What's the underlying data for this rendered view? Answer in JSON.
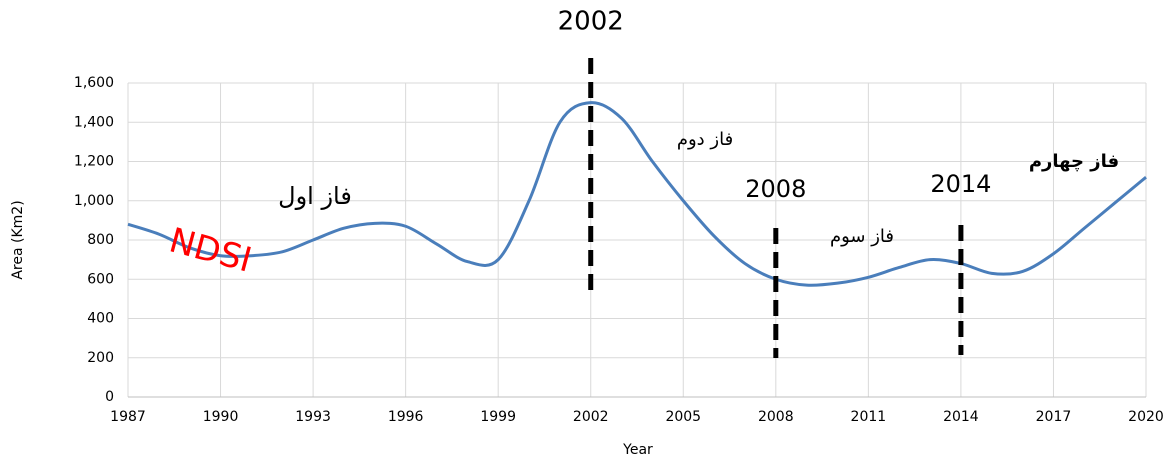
{
  "chart_data": {
    "type": "line",
    "x_label": "Year",
    "y_label": "Area (Km2)",
    "x": [
      1987,
      1988,
      1989,
      1990,
      1991,
      1992,
      1993,
      1994,
      1995,
      1996,
      1997,
      1998,
      1999,
      2000,
      2001,
      2002,
      2003,
      2004,
      2005,
      2006,
      2007,
      2008,
      2009,
      2010,
      2011,
      2012,
      2013,
      2014,
      2015,
      2016,
      2017,
      2018,
      2019,
      2020
    ],
    "series": [
      {
        "color": "#4a7ebb",
        "values": [
          880,
          830,
          760,
          720,
          720,
          740,
          800,
          860,
          885,
          870,
          780,
          690,
          700,
          1000,
          1400,
          1500,
          1420,
          1200,
          1000,
          820,
          680,
          600,
          570,
          580,
          610,
          660,
          700,
          680,
          630,
          640,
          730,
          860,
          990,
          1120
        ]
      }
    ],
    "xlim": [
      1987,
      2020
    ],
    "xticks": [
      1987,
      1990,
      1993,
      1996,
      1999,
      2002,
      2005,
      2008,
      2011,
      2014,
      2017,
      2020
    ],
    "ylim": [
      0,
      1600
    ],
    "yticks": [
      0,
      200,
      400,
      600,
      800,
      {
        "value": 1000,
        "label": "1,000"
      },
      {
        "value": 1200,
        "label": "1,200"
      },
      {
        "value": 1400,
        "label": "1,400"
      },
      {
        "value": 1600,
        "label": "1,600"
      }
    ],
    "grid": true,
    "vlines": [
      2002,
      2008,
      2014
    ],
    "annotations": [
      "NDSI",
      "فاز اول",
      "فاز دوم",
      "فاز سوم",
      "فاز چهارم"
    ]
  }
}
